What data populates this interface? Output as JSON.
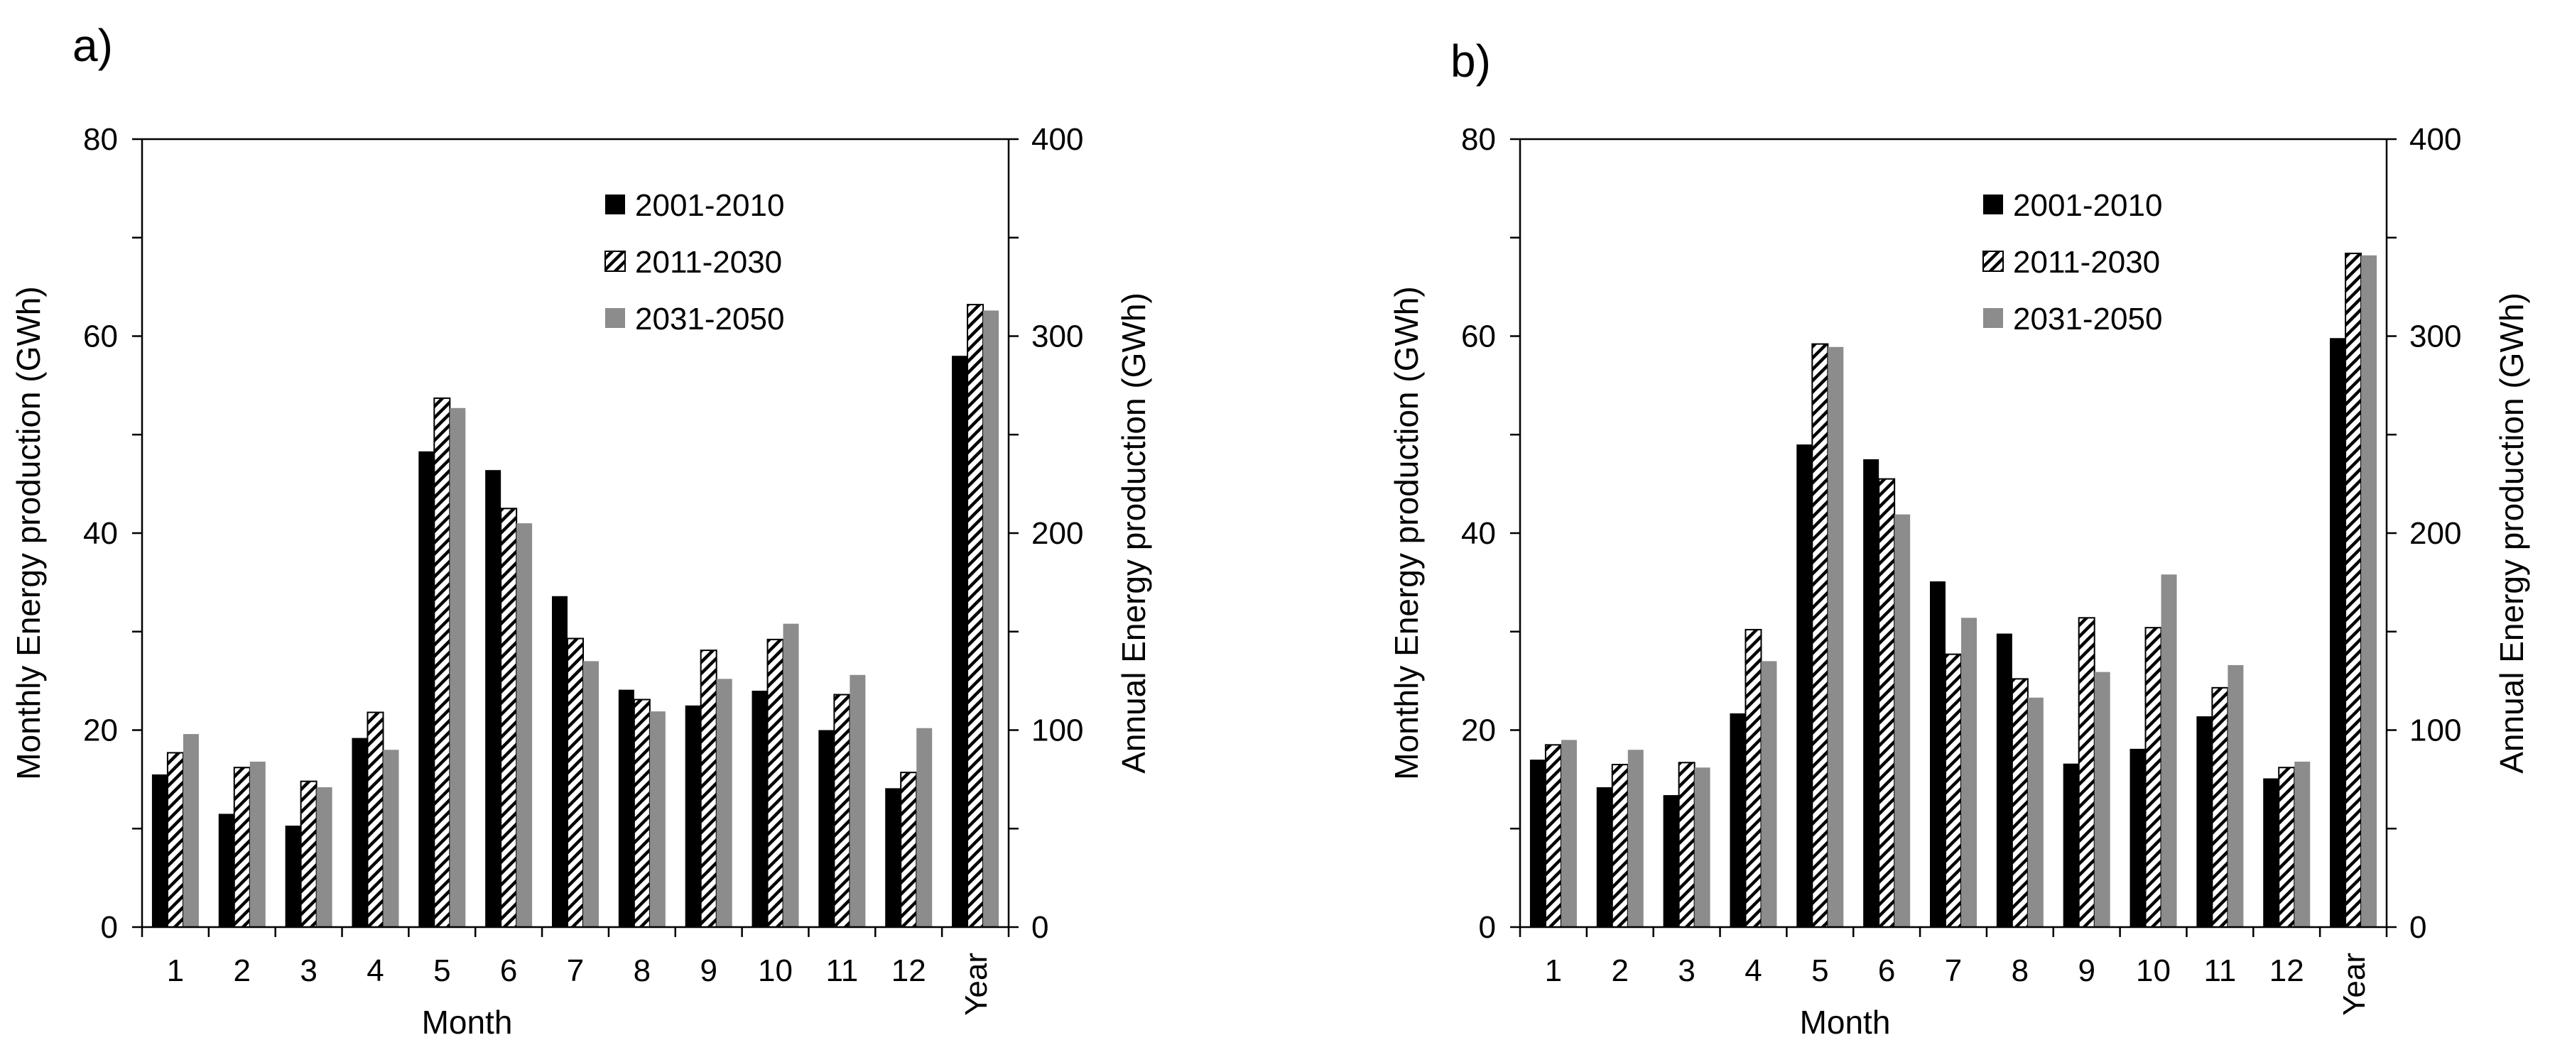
{
  "chart_data": [
    {
      "panel_label": "a)",
      "type": "bar",
      "xlabel": "Month",
      "ylabel": "Monthly Energy production (GWh)",
      "y2label": "Annual Energy production (GWh)",
      "ylim": [
        0,
        80
      ],
      "y2lim": [
        0,
        400
      ],
      "yticks": [
        "0",
        "20",
        "40",
        "60",
        "80"
      ],
      "y2ticks": [
        "0",
        "100",
        "200",
        "300",
        "400"
      ],
      "categories": [
        "1",
        "2",
        "3",
        "4",
        "5",
        "6",
        "7",
        "8",
        "9",
        "10",
        "11",
        "12",
        "Year"
      ],
      "year_axis": "secondary",
      "grid": false,
      "legend_position": "top-right",
      "series": [
        {
          "name": "2001-2010",
          "style": "solid-black",
          "values": [
            15.5,
            11.5,
            10.3,
            19.2,
            48.3,
            46.4,
            33.6,
            24.1,
            22.5,
            24.0,
            20.0,
            14.1,
            290
          ]
        },
        {
          "name": "2011-2030",
          "style": "hatched",
          "values": [
            17.7,
            16.2,
            14.8,
            21.8,
            53.7,
            42.5,
            29.3,
            23.1,
            28.1,
            29.2,
            23.6,
            15.7,
            316
          ]
        },
        {
          "name": "2031-2050",
          "style": "solid-gray",
          "values": [
            19.6,
            16.8,
            14.2,
            18.0,
            52.7,
            41.0,
            27.0,
            21.9,
            25.2,
            30.8,
            25.6,
            20.2,
            313
          ]
        }
      ]
    },
    {
      "panel_label": "b)",
      "type": "bar",
      "xlabel": "Month",
      "ylabel": "Monthly Energy production (GWh)",
      "y2label": "Annual Energy production (GWh)",
      "ylim": [
        0,
        80
      ],
      "y2lim": [
        0,
        400
      ],
      "yticks": [
        "0",
        "20",
        "40",
        "60",
        "80"
      ],
      "y2ticks": [
        "0",
        "100",
        "200",
        "300",
        "400"
      ],
      "categories": [
        "1",
        "2",
        "3",
        "4",
        "5",
        "6",
        "7",
        "8",
        "9",
        "10",
        "11",
        "12",
        "Year"
      ],
      "year_axis": "secondary",
      "grid": false,
      "legend_position": "top-right",
      "series": [
        {
          "name": "2001-2010",
          "style": "solid-black",
          "values": [
            17.0,
            14.2,
            13.4,
            21.7,
            49.0,
            47.5,
            35.1,
            29.8,
            16.6,
            18.1,
            21.4,
            15.1,
            299
          ]
        },
        {
          "name": "2011-2030",
          "style": "hatched",
          "values": [
            18.5,
            16.5,
            16.7,
            30.2,
            59.2,
            45.5,
            27.7,
            25.2,
            31.4,
            30.4,
            24.3,
            16.2,
            342
          ]
        },
        {
          "name": "2031-2050",
          "style": "solid-gray",
          "values": [
            19.0,
            18.0,
            16.2,
            27.0,
            58.9,
            41.9,
            31.4,
            23.3,
            25.9,
            35.8,
            26.6,
            16.8,
            341
          ]
        }
      ]
    }
  ],
  "colors": {
    "series_solid_black": "#000000",
    "series_hatched_stroke": "#000000",
    "series_hatched_fill": "#ffffff",
    "series_solid_gray": "#8c8c8c",
    "axis": "#000000"
  }
}
